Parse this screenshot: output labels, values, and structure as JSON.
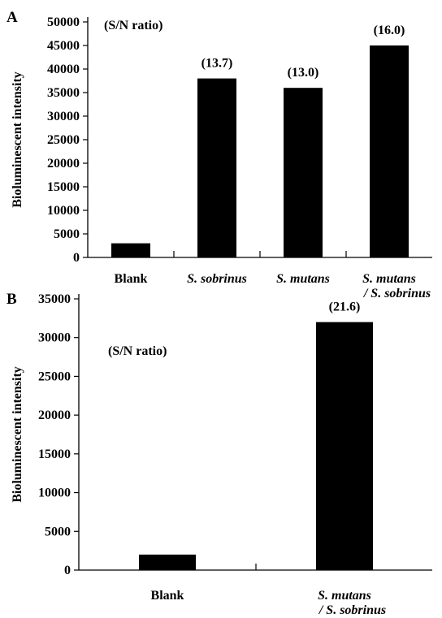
{
  "chart_data": [
    {
      "type": "bar",
      "panel": "A",
      "note": "(S/N ratio)",
      "ylabel": "Bioluminescent intensity",
      "xlabel": "",
      "ylim": [
        0,
        50000
      ],
      "yticks": [
        "50000",
        "45000",
        "40000",
        "35000",
        "30000",
        "25000",
        "20000",
        "15000",
        "10000",
        "5000",
        "0"
      ],
      "categories": [
        {
          "line1": "Blank",
          "line2": "",
          "italic": false
        },
        {
          "line1": "S. sobrinus",
          "line2": "",
          "italic": true
        },
        {
          "line1": "S. mutans",
          "line2": "",
          "italic": true
        },
        {
          "line1": "S. mutans",
          "line2": "/ S. sobrinus",
          "italic": true
        }
      ],
      "values": [
        3000,
        38000,
        36000,
        45000
      ],
      "annotations": [
        "",
        "(13.7)",
        "(13.0)",
        "(16.0)"
      ],
      "bar_color": "#000000"
    },
    {
      "type": "bar",
      "panel": "B",
      "note": "(S/N ratio)",
      "ylabel": "Bioluminescent intensity",
      "xlabel": "",
      "ylim": [
        0,
        35000
      ],
      "yticks": [
        "35000",
        "30000",
        "25000",
        "20000",
        "15000",
        "10000",
        "5000",
        "0"
      ],
      "categories": [
        {
          "line1": "Blank",
          "line2": "",
          "italic": false
        },
        {
          "line1": "S. mutans",
          "line2": "/ S. sobrinus",
          "italic": true
        }
      ],
      "values": [
        2000,
        32000
      ],
      "annotations": [
        "",
        "(21.6)"
      ],
      "bar_color": "#000000"
    }
  ]
}
